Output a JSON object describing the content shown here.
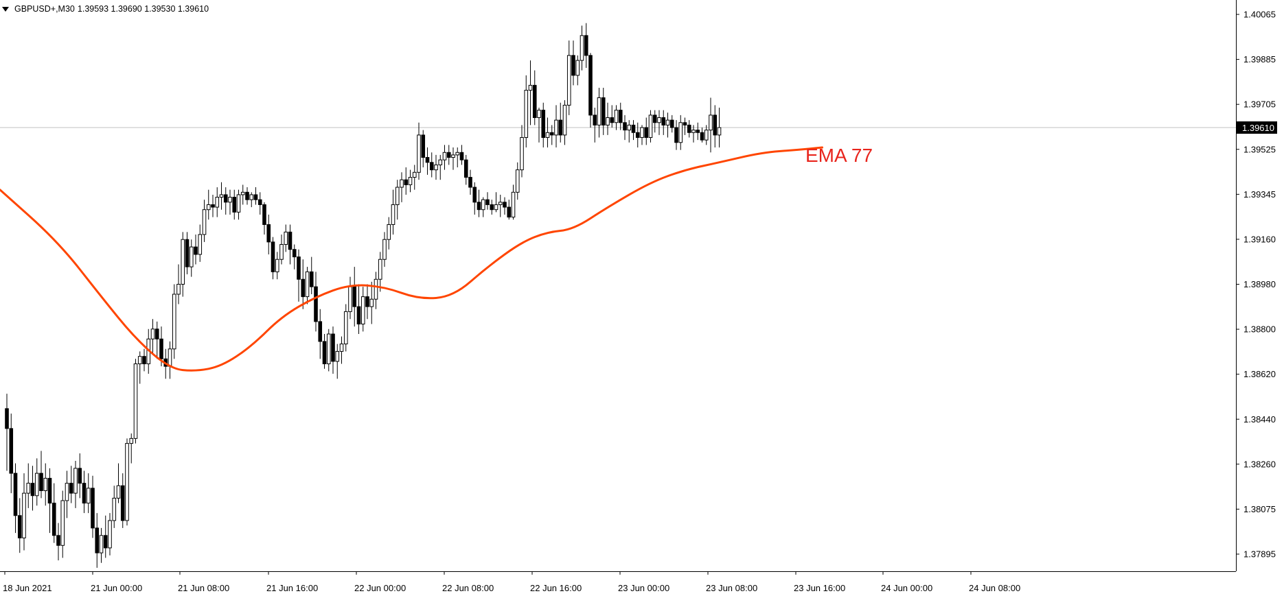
{
  "header": {
    "symbol": "GBPUSD+,M30",
    "ohlc": "1.39593 1.39690 1.39530 1.39610"
  },
  "indicator": {
    "label": "EMA 77",
    "color": "#e8241c"
  },
  "colors": {
    "background": "#ffffff",
    "candle_outline": "#000000",
    "bull_fill": "#ffffff",
    "bear_fill": "#000000",
    "current_price_line": "#c0c0c0",
    "price_tag_bg": "#000000",
    "price_tag_text": "#ffffff",
    "ema_line": "#ff4500"
  },
  "current_price": {
    "label": "1.39610",
    "value": 1.3961
  },
  "chart_data": {
    "type": "candlestick",
    "price_axis": {
      "ticks": [
        "1.40065",
        "1.39885",
        "1.39705",
        "1.39525",
        "1.39345",
        "1.39160",
        "1.38980",
        "1.38800",
        "1.38620",
        "1.38440",
        "1.38260",
        "1.38075",
        "1.37895"
      ],
      "range": [
        1.3781,
        1.4013
      ]
    },
    "time_axis": {
      "ticks": [
        "18 Jun 2021",
        "21 Jun 00:00",
        "21 Jun 08:00",
        "21 Jun 16:00",
        "22 Jun 00:00",
        "22 Jun 08:00",
        "22 Jun 16:00",
        "23 Jun 00:00",
        "23 Jun 08:00",
        "23 Jun 16:00",
        "24 Jun 00:00",
        "24 Jun 08:00"
      ]
    },
    "ema_period": 77,
    "ema": [
      [
        0,
        1.3936
      ],
      [
        12,
        1.3915
      ],
      [
        22,
        1.3893
      ],
      [
        30,
        1.3876
      ],
      [
        38,
        1.3864
      ],
      [
        44,
        1.3863
      ],
      [
        50,
        1.3865
      ],
      [
        57,
        1.3873
      ],
      [
        64,
        1.3885
      ],
      [
        72,
        1.3893
      ],
      [
        80,
        1.3898
      ],
      [
        88,
        1.3897
      ],
      [
        96,
        1.3892
      ],
      [
        104,
        1.3893
      ],
      [
        112,
        1.3905
      ],
      [
        120,
        1.3915
      ],
      [
        126,
        1.3919
      ],
      [
        132,
        1.392
      ],
      [
        140,
        1.3929
      ],
      [
        150,
        1.3939
      ],
      [
        158,
        1.3944
      ],
      [
        166,
        1.3947
      ],
      [
        176,
        1.3951
      ],
      [
        184,
        1.3952
      ],
      [
        190,
        1.3953
      ]
    ],
    "candles": [
      {
        "o": 1.3848,
        "h": 1.3854,
        "l": 1.3823,
        "c": 1.384
      },
      {
        "o": 1.384,
        "h": 1.3846,
        "l": 1.3814,
        "c": 1.3822
      },
      {
        "o": 1.3822,
        "h": 1.3826,
        "l": 1.3798,
        "c": 1.3805
      },
      {
        "o": 1.3805,
        "h": 1.3812,
        "l": 1.379,
        "c": 1.3796
      },
      {
        "o": 1.3796,
        "h": 1.3822,
        "l": 1.3791,
        "c": 1.3814
      },
      {
        "o": 1.3814,
        "h": 1.3826,
        "l": 1.3808,
        "c": 1.3818
      },
      {
        "o": 1.3818,
        "h": 1.3825,
        "l": 1.3807,
        "c": 1.3813
      },
      {
        "o": 1.3813,
        "h": 1.3828,
        "l": 1.3809,
        "c": 1.3822
      },
      {
        "o": 1.3822,
        "h": 1.3831,
        "l": 1.3812,
        "c": 1.3815
      },
      {
        "o": 1.3815,
        "h": 1.3826,
        "l": 1.3809,
        "c": 1.382
      },
      {
        "o": 1.382,
        "h": 1.3824,
        "l": 1.3798,
        "c": 1.381
      },
      {
        "o": 1.381,
        "h": 1.3818,
        "l": 1.3794,
        "c": 1.3797
      },
      {
        "o": 1.3797,
        "h": 1.3802,
        "l": 1.3787,
        "c": 1.3793
      },
      {
        "o": 1.3793,
        "h": 1.3815,
        "l": 1.3788,
        "c": 1.3811
      },
      {
        "o": 1.3811,
        "h": 1.3823,
        "l": 1.3804,
        "c": 1.3818
      },
      {
        "o": 1.3818,
        "h": 1.3825,
        "l": 1.381,
        "c": 1.3814
      },
      {
        "o": 1.3814,
        "h": 1.3827,
        "l": 1.3808,
        "c": 1.3824
      },
      {
        "o": 1.3824,
        "h": 1.383,
        "l": 1.3812,
        "c": 1.3818
      },
      {
        "o": 1.3818,
        "h": 1.3823,
        "l": 1.3806,
        "c": 1.381
      },
      {
        "o": 1.381,
        "h": 1.3822,
        "l": 1.3806,
        "c": 1.3816
      },
      {
        "o": 1.3816,
        "h": 1.3821,
        "l": 1.3796,
        "c": 1.38
      },
      {
        "o": 1.38,
        "h": 1.3806,
        "l": 1.3784,
        "c": 1.379
      },
      {
        "o": 1.379,
        "h": 1.38,
        "l": 1.3786,
        "c": 1.3797
      },
      {
        "o": 1.3797,
        "h": 1.3805,
        "l": 1.3788,
        "c": 1.3792
      },
      {
        "o": 1.3792,
        "h": 1.3806,
        "l": 1.3789,
        "c": 1.3803
      },
      {
        "o": 1.3803,
        "h": 1.3817,
        "l": 1.38,
        "c": 1.3812
      },
      {
        "o": 1.3812,
        "h": 1.3826,
        "l": 1.381,
        "c": 1.3817
      },
      {
        "o": 1.3817,
        "h": 1.3822,
        "l": 1.38,
        "c": 1.3803
      },
      {
        "o": 1.3803,
        "h": 1.3836,
        "l": 1.3801,
        "c": 1.3834
      },
      {
        "o": 1.3834,
        "h": 1.3838,
        "l": 1.3826,
        "c": 1.3836
      },
      {
        "o": 1.3836,
        "h": 1.3868,
        "l": 1.3834,
        "c": 1.3866
      },
      {
        "o": 1.3866,
        "h": 1.3871,
        "l": 1.3858,
        "c": 1.3869
      },
      {
        "o": 1.3869,
        "h": 1.3872,
        "l": 1.3863,
        "c": 1.3866
      },
      {
        "o": 1.3866,
        "h": 1.388,
        "l": 1.3862,
        "c": 1.3876
      },
      {
        "o": 1.3876,
        "h": 1.3884,
        "l": 1.387,
        "c": 1.388
      },
      {
        "o": 1.388,
        "h": 1.3883,
        "l": 1.3868,
        "c": 1.3876
      },
      {
        "o": 1.3876,
        "h": 1.3881,
        "l": 1.3865,
        "c": 1.3868
      },
      {
        "o": 1.3868,
        "h": 1.3872,
        "l": 1.386,
        "c": 1.3865
      },
      {
        "o": 1.3865,
        "h": 1.3875,
        "l": 1.386,
        "c": 1.3872
      },
      {
        "o": 1.3872,
        "h": 1.3898,
        "l": 1.3868,
        "c": 1.3894
      },
      {
        "o": 1.3894,
        "h": 1.3906,
        "l": 1.389,
        "c": 1.3898
      },
      {
        "o": 1.3898,
        "h": 1.3919,
        "l": 1.3893,
        "c": 1.3916
      },
      {
        "o": 1.3916,
        "h": 1.3919,
        "l": 1.3902,
        "c": 1.3905
      },
      {
        "o": 1.3905,
        "h": 1.3916,
        "l": 1.3901,
        "c": 1.3913
      },
      {
        "o": 1.3913,
        "h": 1.3918,
        "l": 1.3906,
        "c": 1.391
      },
      {
        "o": 1.391,
        "h": 1.3922,
        "l": 1.3907,
        "c": 1.3918
      },
      {
        "o": 1.3918,
        "h": 1.3932,
        "l": 1.3915,
        "c": 1.3928
      },
      {
        "o": 1.3928,
        "h": 1.3936,
        "l": 1.3924,
        "c": 1.393
      },
      {
        "o": 1.393,
        "h": 1.3934,
        "l": 1.3925,
        "c": 1.3929
      },
      {
        "o": 1.3929,
        "h": 1.3937,
        "l": 1.3925,
        "c": 1.3933
      },
      {
        "o": 1.3933,
        "h": 1.3939,
        "l": 1.3928,
        "c": 1.3934
      },
      {
        "o": 1.3934,
        "h": 1.3937,
        "l": 1.3926,
        "c": 1.3931
      },
      {
        "o": 1.3931,
        "h": 1.3936,
        "l": 1.3926,
        "c": 1.3933
      },
      {
        "o": 1.3933,
        "h": 1.3936,
        "l": 1.3924,
        "c": 1.3927
      },
      {
        "o": 1.3927,
        "h": 1.3936,
        "l": 1.3924,
        "c": 1.3934
      },
      {
        "o": 1.3934,
        "h": 1.3938,
        "l": 1.393,
        "c": 1.3935
      },
      {
        "o": 1.3935,
        "h": 1.3937,
        "l": 1.393,
        "c": 1.3932
      },
      {
        "o": 1.3932,
        "h": 1.3935,
        "l": 1.3929,
        "c": 1.3934
      },
      {
        "o": 1.3934,
        "h": 1.3937,
        "l": 1.393,
        "c": 1.3932
      },
      {
        "o": 1.3932,
        "h": 1.3935,
        "l": 1.3926,
        "c": 1.393
      },
      {
        "o": 1.393,
        "h": 1.3931,
        "l": 1.3918,
        "c": 1.3922
      },
      {
        "o": 1.3922,
        "h": 1.3926,
        "l": 1.391,
        "c": 1.3915
      },
      {
        "o": 1.3915,
        "h": 1.3917,
        "l": 1.39,
        "c": 1.3903
      },
      {
        "o": 1.3903,
        "h": 1.3911,
        "l": 1.39,
        "c": 1.3908
      },
      {
        "o": 1.3908,
        "h": 1.3918,
        "l": 1.3906,
        "c": 1.3914
      },
      {
        "o": 1.3914,
        "h": 1.3922,
        "l": 1.3911,
        "c": 1.3919
      },
      {
        "o": 1.3919,
        "h": 1.3922,
        "l": 1.3906,
        "c": 1.3912
      },
      {
        "o": 1.3912,
        "h": 1.3914,
        "l": 1.3904,
        "c": 1.3909
      },
      {
        "o": 1.3909,
        "h": 1.3912,
        "l": 1.3891,
        "c": 1.39
      },
      {
        "o": 1.39,
        "h": 1.3908,
        "l": 1.3888,
        "c": 1.3893
      },
      {
        "o": 1.3893,
        "h": 1.3905,
        "l": 1.389,
        "c": 1.3903
      },
      {
        "o": 1.3903,
        "h": 1.3909,
        "l": 1.3894,
        "c": 1.3897
      },
      {
        "o": 1.3897,
        "h": 1.3903,
        "l": 1.3879,
        "c": 1.3883
      },
      {
        "o": 1.3883,
        "h": 1.3888,
        "l": 1.3868,
        "c": 1.3875
      },
      {
        "o": 1.3875,
        "h": 1.3878,
        "l": 1.3864,
        "c": 1.3866
      },
      {
        "o": 1.3866,
        "h": 1.388,
        "l": 1.3863,
        "c": 1.3878
      },
      {
        "o": 1.3878,
        "h": 1.3881,
        "l": 1.3862,
        "c": 1.3867
      },
      {
        "o": 1.3867,
        "h": 1.3874,
        "l": 1.386,
        "c": 1.3871
      },
      {
        "o": 1.3871,
        "h": 1.3877,
        "l": 1.3866,
        "c": 1.3874
      },
      {
        "o": 1.3874,
        "h": 1.389,
        "l": 1.3871,
        "c": 1.3887
      },
      {
        "o": 1.3887,
        "h": 1.3901,
        "l": 1.3884,
        "c": 1.3897
      },
      {
        "o": 1.3897,
        "h": 1.3905,
        "l": 1.3881,
        "c": 1.3889
      },
      {
        "o": 1.3889,
        "h": 1.3898,
        "l": 1.3878,
        "c": 1.3882
      },
      {
        "o": 1.3882,
        "h": 1.3897,
        "l": 1.3879,
        "c": 1.3893
      },
      {
        "o": 1.3893,
        "h": 1.3898,
        "l": 1.3884,
        "c": 1.3889
      },
      {
        "o": 1.3889,
        "h": 1.3899,
        "l": 1.3882,
        "c": 1.3892
      },
      {
        "o": 1.3892,
        "h": 1.3903,
        "l": 1.3888,
        "c": 1.39
      },
      {
        "o": 1.39,
        "h": 1.3911,
        "l": 1.3895,
        "c": 1.3908
      },
      {
        "o": 1.3908,
        "h": 1.3919,
        "l": 1.3905,
        "c": 1.3916
      },
      {
        "o": 1.3916,
        "h": 1.3925,
        "l": 1.3912,
        "c": 1.3922
      },
      {
        "o": 1.3922,
        "h": 1.3936,
        "l": 1.3918,
        "c": 1.393
      },
      {
        "o": 1.393,
        "h": 1.394,
        "l": 1.3924,
        "c": 1.3937
      },
      {
        "o": 1.3937,
        "h": 1.3943,
        "l": 1.3931,
        "c": 1.394
      },
      {
        "o": 1.394,
        "h": 1.3945,
        "l": 1.3934,
        "c": 1.3938
      },
      {
        "o": 1.3938,
        "h": 1.3944,
        "l": 1.3935,
        "c": 1.3941
      },
      {
        "o": 1.3941,
        "h": 1.3946,
        "l": 1.3936,
        "c": 1.3943
      },
      {
        "o": 1.3943,
        "h": 1.3963,
        "l": 1.394,
        "c": 1.3958
      },
      {
        "o": 1.3958,
        "h": 1.396,
        "l": 1.3945,
        "c": 1.3949
      },
      {
        "o": 1.3949,
        "h": 1.3953,
        "l": 1.3942,
        "c": 1.3947
      },
      {
        "o": 1.3947,
        "h": 1.3951,
        "l": 1.3941,
        "c": 1.3944
      },
      {
        "o": 1.3944,
        "h": 1.395,
        "l": 1.394,
        "c": 1.3946
      },
      {
        "o": 1.3946,
        "h": 1.395,
        "l": 1.394,
        "c": 1.3948
      },
      {
        "o": 1.3948,
        "h": 1.3954,
        "l": 1.3944,
        "c": 1.3951
      },
      {
        "o": 1.3951,
        "h": 1.3954,
        "l": 1.3946,
        "c": 1.3949
      },
      {
        "o": 1.3949,
        "h": 1.3953,
        "l": 1.3944,
        "c": 1.395
      },
      {
        "o": 1.395,
        "h": 1.3953,
        "l": 1.3945,
        "c": 1.3951
      },
      {
        "o": 1.3951,
        "h": 1.3954,
        "l": 1.3946,
        "c": 1.3948
      },
      {
        "o": 1.3948,
        "h": 1.395,
        "l": 1.3938,
        "c": 1.3941
      },
      {
        "o": 1.3941,
        "h": 1.3944,
        "l": 1.3934,
        "c": 1.3937
      },
      {
        "o": 1.3937,
        "h": 1.3939,
        "l": 1.3926,
        "c": 1.3931
      },
      {
        "o": 1.3931,
        "h": 1.3936,
        "l": 1.3925,
        "c": 1.3928
      },
      {
        "o": 1.3928,
        "h": 1.3933,
        "l": 1.3925,
        "c": 1.3932
      },
      {
        "o": 1.3932,
        "h": 1.3935,
        "l": 1.3928,
        "c": 1.393
      },
      {
        "o": 1.393,
        "h": 1.3932,
        "l": 1.3926,
        "c": 1.3928
      },
      {
        "o": 1.3928,
        "h": 1.3935,
        "l": 1.3927,
        "c": 1.393
      },
      {
        "o": 1.393,
        "h": 1.3934,
        "l": 1.3925,
        "c": 1.3931
      },
      {
        "o": 1.3931,
        "h": 1.3933,
        "l": 1.3926,
        "c": 1.3929
      },
      {
        "o": 1.3929,
        "h": 1.3932,
        "l": 1.3924,
        "c": 1.3925
      },
      {
        "o": 1.3925,
        "h": 1.3938,
        "l": 1.3924,
        "c": 1.3935
      },
      {
        "o": 1.3935,
        "h": 1.3947,
        "l": 1.3932,
        "c": 1.3944
      },
      {
        "o": 1.3944,
        "h": 1.3962,
        "l": 1.3941,
        "c": 1.3957
      },
      {
        "o": 1.3957,
        "h": 1.3982,
        "l": 1.3953,
        "c": 1.3976
      },
      {
        "o": 1.3976,
        "h": 1.3988,
        "l": 1.3962,
        "c": 1.3978
      },
      {
        "o": 1.3978,
        "h": 1.3984,
        "l": 1.3962,
        "c": 1.3965
      },
      {
        "o": 1.3965,
        "h": 1.3969,
        "l": 1.3955,
        "c": 1.3968
      },
      {
        "o": 1.3968,
        "h": 1.3971,
        "l": 1.3953,
        "c": 1.3957
      },
      {
        "o": 1.3957,
        "h": 1.3965,
        "l": 1.3953,
        "c": 1.3959
      },
      {
        "o": 1.3959,
        "h": 1.3962,
        "l": 1.3954,
        "c": 1.3958
      },
      {
        "o": 1.3958,
        "h": 1.397,
        "l": 1.3953,
        "c": 1.3964
      },
      {
        "o": 1.3964,
        "h": 1.3971,
        "l": 1.3955,
        "c": 1.3958
      },
      {
        "o": 1.3958,
        "h": 1.3972,
        "l": 1.3954,
        "c": 1.397
      },
      {
        "o": 1.397,
        "h": 1.3996,
        "l": 1.3966,
        "c": 1.399
      },
      {
        "o": 1.399,
        "h": 1.3996,
        "l": 1.3978,
        "c": 1.3982
      },
      {
        "o": 1.3982,
        "h": 1.399,
        "l": 1.3978,
        "c": 1.3988
      },
      {
        "o": 1.3988,
        "h": 1.4002,
        "l": 1.3984,
        "c": 1.3998
      },
      {
        "o": 1.3998,
        "h": 1.4003,
        "l": 1.3985,
        "c": 1.399
      },
      {
        "o": 1.399,
        "h": 1.3991,
        "l": 1.3961,
        "c": 1.3966
      },
      {
        "o": 1.3966,
        "h": 1.3969,
        "l": 1.3955,
        "c": 1.3962
      },
      {
        "o": 1.3962,
        "h": 1.3977,
        "l": 1.3957,
        "c": 1.3973
      },
      {
        "o": 1.3973,
        "h": 1.3977,
        "l": 1.3958,
        "c": 1.3962
      },
      {
        "o": 1.3962,
        "h": 1.3971,
        "l": 1.3958,
        "c": 1.3965
      },
      {
        "o": 1.3965,
        "h": 1.397,
        "l": 1.3961,
        "c": 1.3963
      },
      {
        "o": 1.3963,
        "h": 1.397,
        "l": 1.396,
        "c": 1.3968
      },
      {
        "o": 1.3968,
        "h": 1.3971,
        "l": 1.396,
        "c": 1.3963
      },
      {
        "o": 1.3963,
        "h": 1.3966,
        "l": 1.3956,
        "c": 1.396
      },
      {
        "o": 1.396,
        "h": 1.3964,
        "l": 1.3955,
        "c": 1.3962
      },
      {
        "o": 1.3962,
        "h": 1.3964,
        "l": 1.3956,
        "c": 1.3959
      },
      {
        "o": 1.3959,
        "h": 1.3963,
        "l": 1.3953,
        "c": 1.3957
      },
      {
        "o": 1.3957,
        "h": 1.3962,
        "l": 1.3954,
        "c": 1.3961
      },
      {
        "o": 1.3961,
        "h": 1.3965,
        "l": 1.3954,
        "c": 1.3957
      },
      {
        "o": 1.3957,
        "h": 1.3968,
        "l": 1.3955,
        "c": 1.3966
      },
      {
        "o": 1.3966,
        "h": 1.3968,
        "l": 1.3959,
        "c": 1.3963
      },
      {
        "o": 1.3963,
        "h": 1.3968,
        "l": 1.3958,
        "c": 1.3965
      },
      {
        "o": 1.3965,
        "h": 1.3968,
        "l": 1.3958,
        "c": 1.3962
      },
      {
        "o": 1.3962,
        "h": 1.3967,
        "l": 1.3957,
        "c": 1.3964
      },
      {
        "o": 1.3964,
        "h": 1.3966,
        "l": 1.3959,
        "c": 1.3961
      },
      {
        "o": 1.3961,
        "h": 1.3964,
        "l": 1.3952,
        "c": 1.3955
      },
      {
        "o": 1.3955,
        "h": 1.3966,
        "l": 1.3952,
        "c": 1.3963
      },
      {
        "o": 1.3963,
        "h": 1.3965,
        "l": 1.3958,
        "c": 1.3962
      },
      {
        "o": 1.3962,
        "h": 1.3964,
        "l": 1.3957,
        "c": 1.3959
      },
      {
        "o": 1.3959,
        "h": 1.3962,
        "l": 1.3955,
        "c": 1.396
      },
      {
        "o": 1.396,
        "h": 1.3963,
        "l": 1.3956,
        "c": 1.3959
      },
      {
        "o": 1.3959,
        "h": 1.3961,
        "l": 1.3955,
        "c": 1.3956
      },
      {
        "o": 1.3956,
        "h": 1.3962,
        "l": 1.3954,
        "c": 1.396
      },
      {
        "o": 1.396,
        "h": 1.3973,
        "l": 1.3951,
        "c": 1.3966
      },
      {
        "o": 1.3966,
        "h": 1.397,
        "l": 1.3953,
        "c": 1.3958
      },
      {
        "o": 1.3958,
        "h": 1.3969,
        "l": 1.3953,
        "c": 1.3961
      }
    ]
  }
}
